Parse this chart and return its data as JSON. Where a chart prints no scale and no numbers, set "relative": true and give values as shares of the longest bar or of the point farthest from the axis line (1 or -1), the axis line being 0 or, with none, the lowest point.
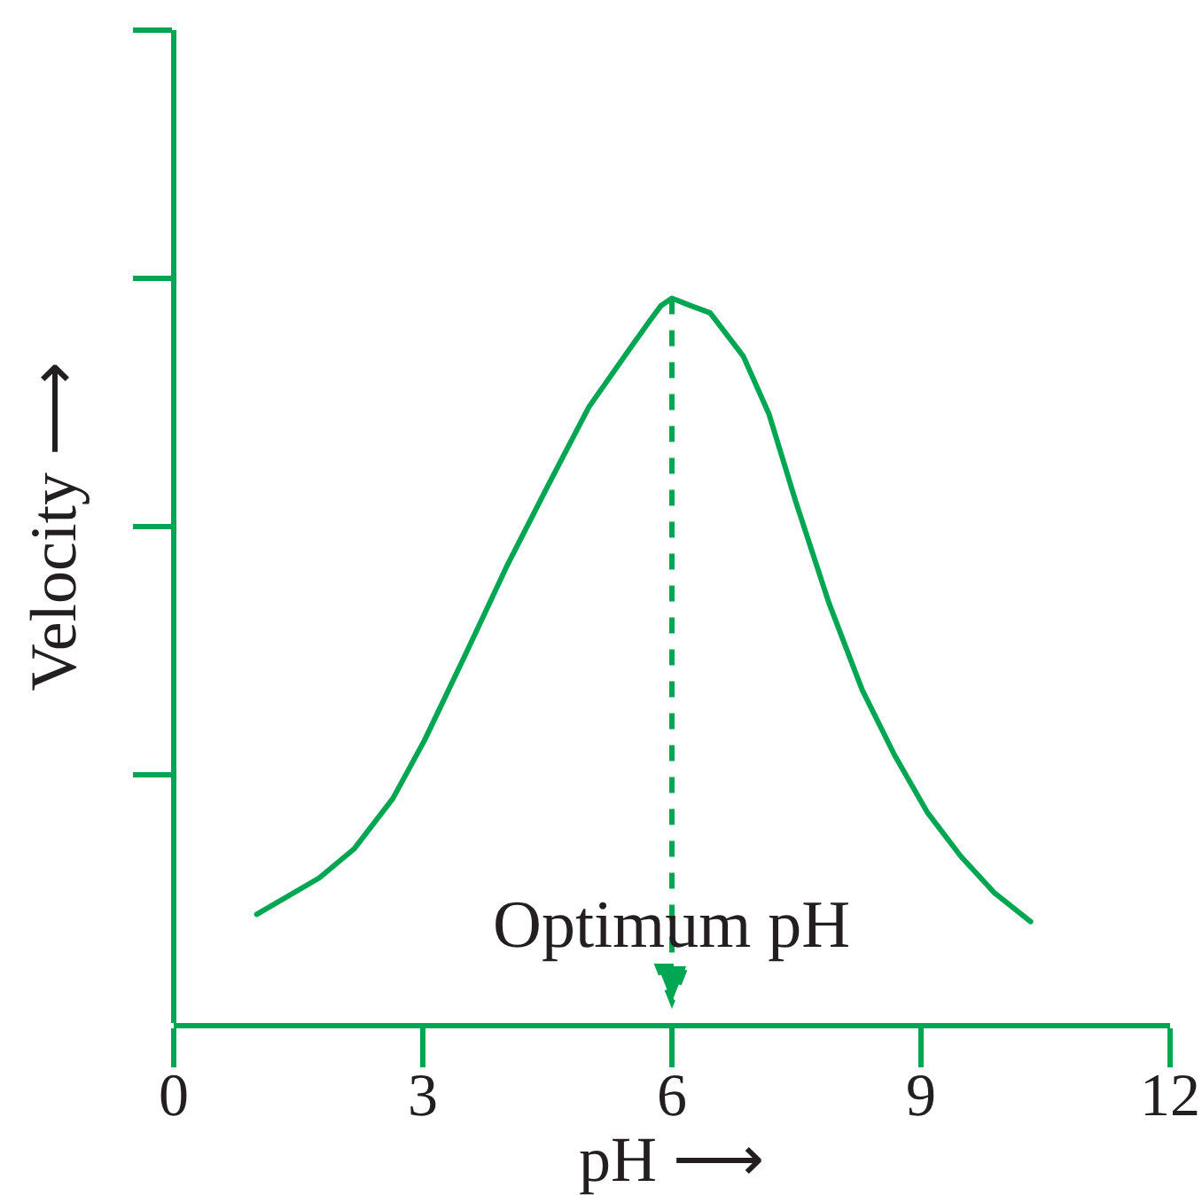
{
  "chart_data": {
    "type": "line",
    "xlabel": "pH ⟶",
    "ylabel": "Velocity ⟶",
    "relative": true,
    "xlim": [
      0,
      12
    ],
    "xticks": [
      0,
      3,
      6,
      9,
      12
    ],
    "line_style": "solid",
    "series": [
      {
        "color": "#00a651",
        "x": [
          1.0,
          1.75,
          2.17,
          2.64,
          3.02,
          3.52,
          4.01,
          4.5,
          5.0,
          5.49,
          5.74,
          5.87,
          6.0,
          6.22,
          6.46,
          6.86,
          7.17,
          7.49,
          7.89,
          8.29,
          8.68,
          9.08,
          9.48,
          9.88,
          10.32
        ],
        "values": [
          0.15,
          0.2,
          0.24,
          0.31,
          0.39,
          0.51,
          0.63,
          0.74,
          0.85,
          0.93,
          0.97,
          0.99,
          1.0,
          0.99,
          0.98,
          0.92,
          0.84,
          0.72,
          0.58,
          0.46,
          0.37,
          0.29,
          0.23,
          0.18,
          0.14
        ]
      }
    ],
    "ref_lines": [
      {
        "axis": "x",
        "value": 6,
        "label": "Optimum pH",
        "color": "#00a651",
        "line_style": "dashed"
      }
    ]
  }
}
